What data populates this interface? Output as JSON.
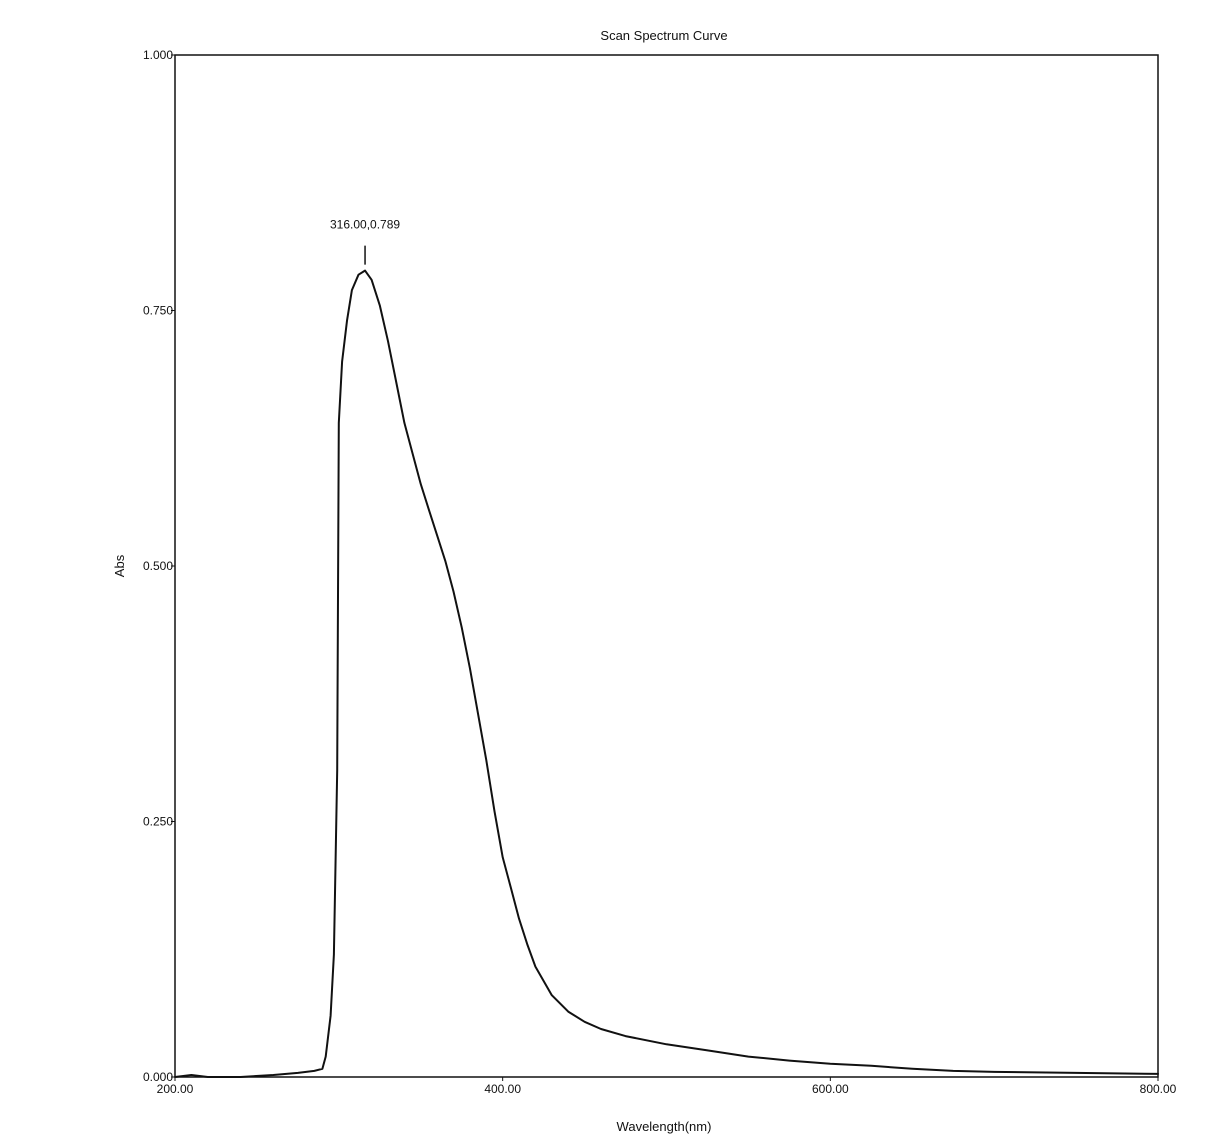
{
  "chart_data": {
    "type": "line",
    "title": "Scan Spectrum Curve",
    "xlabel": "Wavelength(nm)",
    "ylabel": "Abs",
    "xlim": [
      200,
      800
    ],
    "ylim": [
      0,
      1
    ],
    "x_ticks": [
      200,
      400,
      600,
      800
    ],
    "x_tick_labels": [
      "200.00",
      "400.00",
      "600.00",
      "800.00"
    ],
    "y_ticks": [
      0,
      0.25,
      0.5,
      0.75,
      1.0
    ],
    "y_tick_labels": [
      "0.000",
      "0.250",
      "0.500",
      "0.750",
      "1.000"
    ],
    "grid": false,
    "series": [
      {
        "points": [
          [
            200,
            0.0
          ],
          [
            210,
            0.002
          ],
          [
            215,
            0.001
          ],
          [
            220,
            0.0
          ],
          [
            240,
            0.0
          ],
          [
            260,
            0.002
          ],
          [
            275,
            0.004
          ],
          [
            285,
            0.006
          ],
          [
            290,
            0.008
          ],
          [
            292,
            0.02
          ],
          [
            295,
            0.06
          ],
          [
            297,
            0.12
          ],
          [
            299,
            0.3
          ],
          [
            300,
            0.64
          ],
          [
            302,
            0.7
          ],
          [
            305,
            0.74
          ],
          [
            308,
            0.77
          ],
          [
            312,
            0.785
          ],
          [
            316,
            0.789
          ],
          [
            320,
            0.78
          ],
          [
            325,
            0.755
          ],
          [
            330,
            0.72
          ],
          [
            335,
            0.68
          ],
          [
            340,
            0.64
          ],
          [
            345,
            0.61
          ],
          [
            350,
            0.58
          ],
          [
            355,
            0.555
          ],
          [
            360,
            0.53
          ],
          [
            365,
            0.505
          ],
          [
            370,
            0.475
          ],
          [
            375,
            0.44
          ],
          [
            380,
            0.4
          ],
          [
            385,
            0.355
          ],
          [
            390,
            0.31
          ],
          [
            395,
            0.26
          ],
          [
            400,
            0.215
          ],
          [
            405,
            0.185
          ],
          [
            410,
            0.155
          ],
          [
            415,
            0.13
          ],
          [
            420,
            0.108
          ],
          [
            430,
            0.08
          ],
          [
            440,
            0.064
          ],
          [
            450,
            0.054
          ],
          [
            460,
            0.047
          ],
          [
            475,
            0.04
          ],
          [
            500,
            0.032
          ],
          [
            525,
            0.026
          ],
          [
            550,
            0.02
          ],
          [
            575,
            0.016
          ],
          [
            600,
            0.013
          ],
          [
            625,
            0.011
          ],
          [
            650,
            0.008
          ],
          [
            675,
            0.006
          ],
          [
            700,
            0.005
          ],
          [
            750,
            0.004
          ],
          [
            800,
            0.003
          ]
        ]
      }
    ],
    "annotations": [
      {
        "text": "316.00,0.789",
        "x": 316,
        "y": 0.789
      }
    ]
  }
}
